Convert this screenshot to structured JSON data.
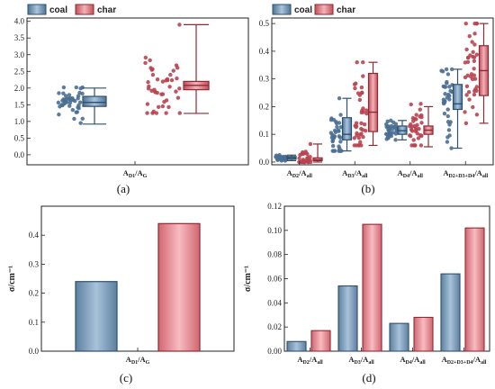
{
  "colors": {
    "coal": "#4a6f92",
    "coal_dark": "#2f4f6e",
    "coal_light": "#a9c4de",
    "char": "#b84450",
    "char_dark": "#8e2a34",
    "char_light": "#f2b2b8"
  },
  "legend": {
    "coal_label": "coal",
    "char_label": "char"
  },
  "chart_data": [
    {
      "panel": "(a)",
      "type": "box-scatter",
      "categories": [
        "AD1/AG"
      ],
      "category_labels": [
        {
          "main": "A",
          "sub1": "D1",
          "mid": "/A",
          "sub2": "G"
        }
      ],
      "ylim": [
        -0.3,
        4.1
      ],
      "yticks": [
        "0.0",
        "0.5",
        "1.0",
        "1.5",
        "2.0",
        "2.5",
        "3.0",
        "3.5",
        "4.0"
      ],
      "ytick_values": [
        0,
        0.5,
        1.0,
        1.5,
        2.0,
        2.5,
        3.0,
        3.5,
        4.0
      ],
      "series": [
        {
          "name": "coal",
          "box": {
            "whisker_low": 0.92,
            "q1": 1.45,
            "median": 1.57,
            "q3": 1.75,
            "whisker_high": 2.0
          },
          "points_range": [
            0.95,
            2.02
          ],
          "points_center": 1.6,
          "n_points": 45
        },
        {
          "name": "char",
          "box": {
            "whisker_low": 1.24,
            "q1": 1.95,
            "median": 2.08,
            "q3": 2.2,
            "whisker_high": 3.9
          },
          "points_range": [
            1.25,
            3.9
          ],
          "points_center": 2.1,
          "n_points": 45
        }
      ]
    },
    {
      "panel": "(b)",
      "type": "box-scatter",
      "categories": [
        "AD2/Aall",
        "AD3/Aall",
        "AD4/Aall",
        "AD2+D3+D4/Aall"
      ],
      "category_labels": [
        {
          "main": "A",
          "sub1": "D2",
          "mid": "/A",
          "sub2": "all"
        },
        {
          "main": "A",
          "sub1": "D3",
          "mid": "/A",
          "sub2": "all"
        },
        {
          "main": "A",
          "sub1": "D4",
          "mid": "/A",
          "sub2": "all"
        },
        {
          "main": "A",
          "sub1": "D2+D3+D4",
          "mid": "/A",
          "sub2": "all"
        }
      ],
      "ylim": [
        -0.01,
        0.52
      ],
      "yticks": [
        "0.0",
        "0.1",
        "0.2",
        "0.3",
        "0.4",
        "0.5"
      ],
      "ytick_values": [
        0,
        0.1,
        0.2,
        0.3,
        0.4,
        0.5
      ],
      "series": [
        {
          "name": "coal",
          "boxes": [
            {
              "whisker_low": 0.005,
              "q1": 0.01,
              "median": 0.015,
              "q3": 0.02,
              "whisker_high": 0.025,
              "points_range": [
                0.005,
                0.025
              ],
              "n_points": 30
            },
            {
              "whisker_low": 0.04,
              "q1": 0.08,
              "median": 0.1,
              "q3": 0.16,
              "whisker_high": 0.23,
              "points_range": [
                0.04,
                0.23
              ],
              "n_points": 35
            },
            {
              "whisker_low": 0.08,
              "q1": 0.1,
              "median": 0.113,
              "q3": 0.13,
              "whisker_high": 0.15,
              "points_range": [
                0.08,
                0.15
              ],
              "n_points": 35
            },
            {
              "whisker_low": 0.05,
              "q1": 0.19,
              "median": 0.21,
              "q3": 0.28,
              "whisker_high": 0.335,
              "points_range": [
                0.05,
                0.335
              ],
              "n_points": 35
            }
          ]
        },
        {
          "name": "char",
          "boxes": [
            {
              "whisker_low": 0.0,
              "q1": 0.005,
              "median": 0.008,
              "q3": 0.015,
              "whisker_high": 0.065,
              "points_range": [
                0.0,
                0.065
              ],
              "n_points": 30
            },
            {
              "whisker_low": 0.06,
              "q1": 0.11,
              "median": 0.18,
              "q3": 0.32,
              "whisker_high": 0.36,
              "points_range": [
                0.06,
                0.36
              ],
              "n_points": 40
            },
            {
              "whisker_low": 0.055,
              "q1": 0.1,
              "median": 0.115,
              "q3": 0.13,
              "whisker_high": 0.2,
              "points_range": [
                0.06,
                0.21
              ],
              "n_points": 35
            },
            {
              "whisker_low": 0.14,
              "q1": 0.24,
              "median": 0.33,
              "q3": 0.42,
              "whisker_high": 0.5,
              "points_range": [
                0.14,
                0.5
              ],
              "n_points": 40
            }
          ]
        }
      ]
    },
    {
      "panel": "(c)",
      "type": "bar",
      "categories": [
        "AD1/AG"
      ],
      "category_labels": [
        {
          "main": "A",
          "sub1": "D1",
          "mid": "/A",
          "sub2": "G"
        }
      ],
      "ylabel": "σ/cm⁻¹",
      "ylim": [
        0,
        0.5
      ],
      "yticks": [
        "0.0",
        "0.1",
        "0.2",
        "0.3",
        "0.4"
      ],
      "ytick_values": [
        0,
        0.1,
        0.2,
        0.3,
        0.4
      ],
      "series": [
        {
          "name": "coal",
          "values": [
            0.24
          ]
        },
        {
          "name": "char",
          "values": [
            0.44
          ]
        }
      ]
    },
    {
      "panel": "(d)",
      "type": "bar",
      "categories": [
        "AD2/Aall",
        "AD3/Aall",
        "AD4/Aall",
        "AD2+D3+D4/Aall"
      ],
      "category_labels": [
        {
          "main": "A",
          "sub1": "D2",
          "mid": "/A",
          "sub2": "all"
        },
        {
          "main": "A",
          "sub1": "D3",
          "mid": "/A",
          "sub2": "all"
        },
        {
          "main": "A",
          "sub1": "D4",
          "mid": "/A",
          "sub2": "all"
        },
        {
          "main": "A",
          "sub1": "D2+D3+D4",
          "mid": "/A",
          "sub2": "all"
        }
      ],
      "ylabel": "σ/cm⁻¹",
      "ylim": [
        0,
        0.12
      ],
      "yticks": [
        "0.00",
        "0.02",
        "0.04",
        "0.06",
        "0.08",
        "0.10",
        "0.12"
      ],
      "ytick_values": [
        0,
        0.02,
        0.04,
        0.06,
        0.08,
        0.1,
        0.12
      ],
      "series": [
        {
          "name": "coal",
          "values": [
            0.008,
            0.054,
            0.023,
            0.064
          ]
        },
        {
          "name": "char",
          "values": [
            0.017,
            0.105,
            0.028,
            0.102
          ]
        }
      ]
    }
  ]
}
